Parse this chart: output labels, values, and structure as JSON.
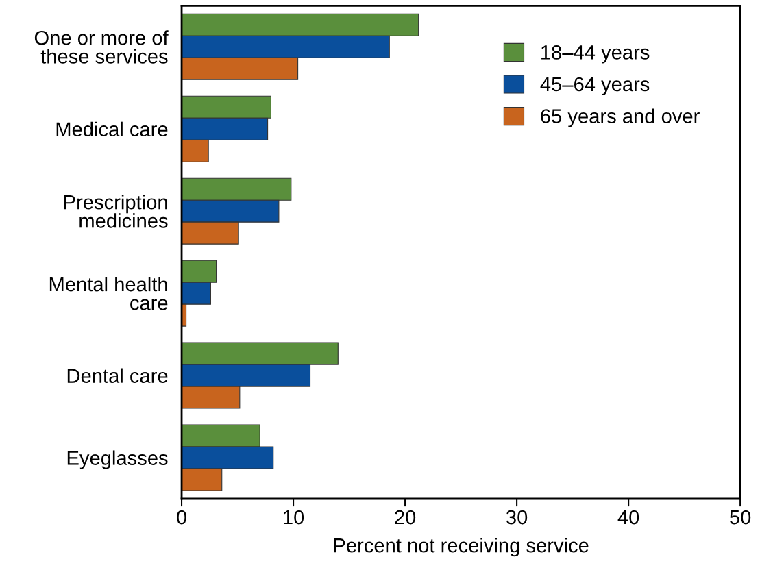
{
  "chart_data": {
    "type": "bar",
    "orientation": "horizontal",
    "xlabel": "Percent not receiving service",
    "categories": [
      "One or more of\nthese services",
      "Medical care",
      "Prescription\nmedicines",
      "Mental health\ncare",
      "Dental care",
      "Eyeglasses"
    ],
    "series": [
      {
        "name": "18–44 years",
        "color": "#5a8f3c",
        "values": [
          21.2,
          8.0,
          9.8,
          3.1,
          14.0,
          7.0
        ]
      },
      {
        "name": "45–64 years",
        "color": "#0a4f9c",
        "values": [
          18.6,
          7.7,
          8.7,
          2.6,
          11.5,
          8.2
        ]
      },
      {
        "name": "65 years and over",
        "color": "#c8641e",
        "values": [
          10.4,
          2.4,
          5.1,
          0.4,
          5.2,
          3.6
        ]
      }
    ],
    "xlim": [
      0,
      50
    ],
    "xticks": [
      0,
      10,
      20,
      30,
      40,
      50
    ],
    "grid": false,
    "legend": "top right"
  }
}
